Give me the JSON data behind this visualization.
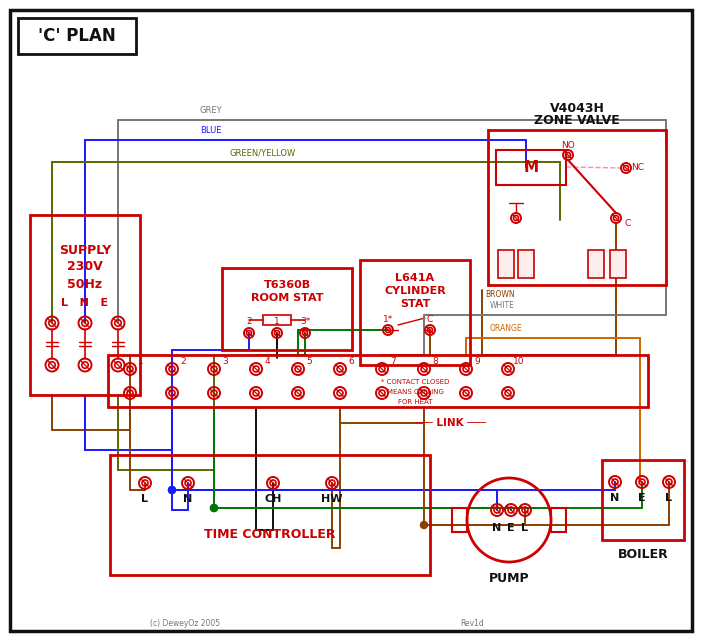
{
  "bg_color": "#ffffff",
  "title": "'C' PLAN",
  "red": "#cc0000",
  "blue": "#1a1aff",
  "green": "#007700",
  "brown": "#8B4000",
  "grey": "#777777",
  "orange": "#cc6600",
  "black": "#111111",
  "gy": "#556B00",
  "pink": "#ff88bb",
  "copyright": "(c) DeweyOz 2005",
  "rev": "Rev1d",
  "fig_w": 7.02,
  "fig_h": 6.41,
  "dpi": 100
}
